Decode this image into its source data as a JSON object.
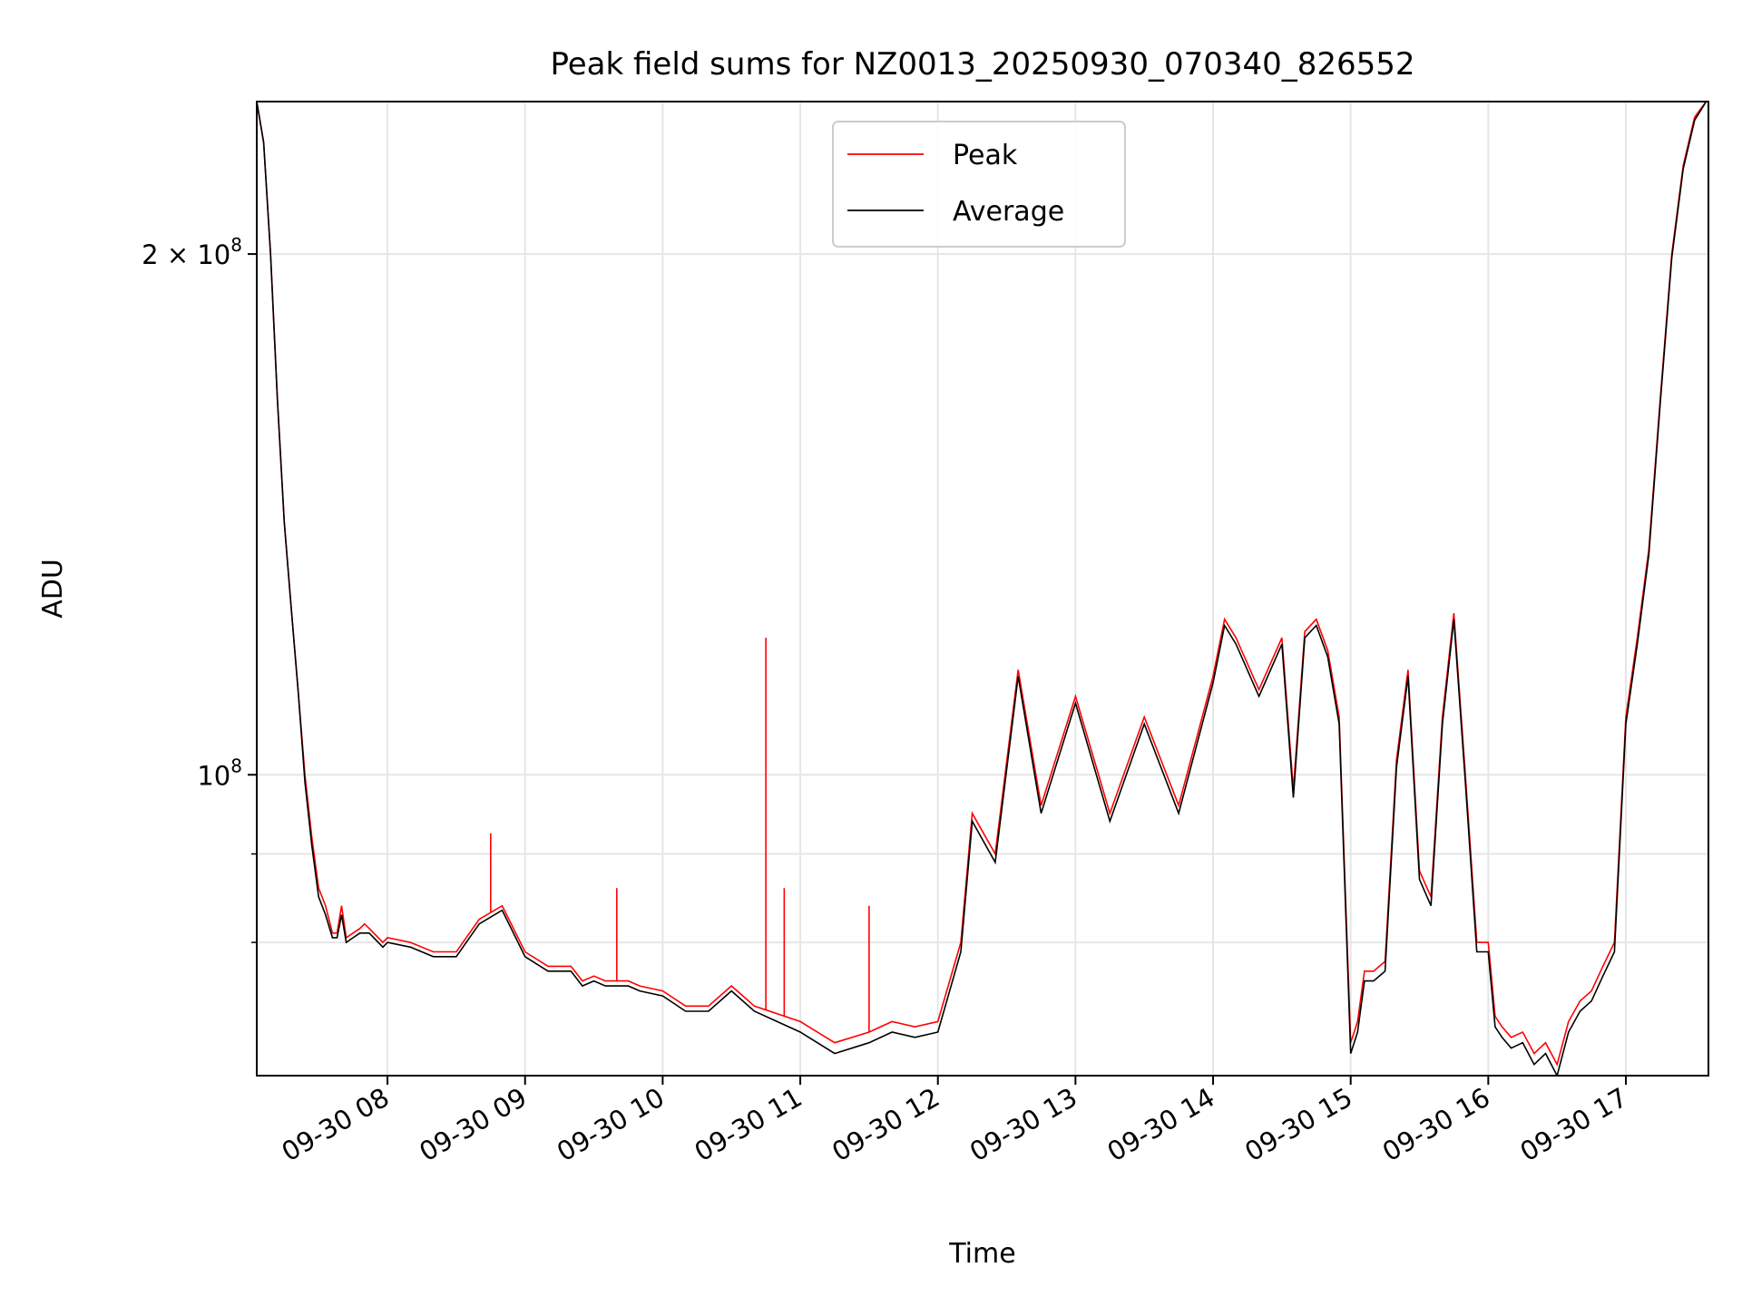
{
  "chart_data": {
    "type": "line",
    "title": "Peak field sums for NZ0013_20250930_070340_826552",
    "xlabel": "Time",
    "ylabel": "ADU",
    "y_scale": "log",
    "grid": true,
    "legend_placement": "upper-center",
    "x_range": [
      "09-30 07:03",
      "09-30 17:36"
    ],
    "ylim": [
      67000000,
      245000000
    ],
    "x_ticks": [
      "09-30 08",
      "09-30 09",
      "09-30 10",
      "09-30 11",
      "09-30 12",
      "09-30 13",
      "09-30 14",
      "09-30 15",
      "09-30 16",
      "09-30 17"
    ],
    "y_ticks": [
      {
        "value": 200000000,
        "base": "2 × 10",
        "exp": "8"
      },
      {
        "value": 100000000,
        "base": "10",
        "exp": "8"
      }
    ],
    "y_minor_ticks": [
      90000000,
      80000000
    ],
    "series": [
      {
        "name": "Peak",
        "color": "#ff0000",
        "x": [
          "07:03",
          "07:06",
          "07:09",
          "07:12",
          "07:15",
          "07:18",
          "07:21",
          "07:24",
          "07:27",
          "07:30",
          "07:33",
          "07:36",
          "07:38",
          "07:40",
          "07:42",
          "07:45",
          "07:48",
          "07:50",
          "07:52",
          "07:58",
          "08:00",
          "08:10",
          "08:20",
          "08:30",
          "08:40",
          "08:50",
          "09:00",
          "09:10",
          "09:20",
          "09:25",
          "09:30",
          "09:35",
          "09:40",
          "09:45",
          "09:50",
          "10:00",
          "10:10",
          "10:20",
          "10:30",
          "10:40",
          "11:00",
          "11:15",
          "11:30",
          "11:40",
          "11:50",
          "12:00",
          "12:10",
          "12:15",
          "12:25",
          "12:35",
          "12:45",
          "13:00",
          "13:15",
          "13:30",
          "13:45",
          "14:00",
          "14:05",
          "14:10",
          "14:20",
          "14:30",
          "14:35",
          "14:40",
          "14:45",
          "14:50",
          "14:55",
          "15:00",
          "15:03",
          "15:06",
          "15:10",
          "15:15",
          "15:20",
          "15:25",
          "15:30",
          "15:35",
          "15:40",
          "15:45",
          "15:50",
          "15:55",
          "16:00",
          "16:03",
          "16:06",
          "16:10",
          "16:15",
          "16:20",
          "16:25",
          "16:30",
          "16:35",
          "16:40",
          "16:45",
          "16:50",
          "16:55",
          "17:00",
          "17:05",
          "17:10",
          "17:15",
          "17:20",
          "17:25",
          "17:30",
          "17:35"
        ],
        "values": [
          245000000,
          232000000,
          200000000,
          165000000,
          140000000,
          125000000,
          112000000,
          100000000,
          92000000,
          86000000,
          84000000,
          81000000,
          81000000,
          84000000,
          80500000,
          81000000,
          81500000,
          82000000,
          81500000,
          80000000,
          80500000,
          80000000,
          79000000,
          79000000,
          82500000,
          84000000,
          79000000,
          77500000,
          77500000,
          76000000,
          76500000,
          76000000,
          76000000,
          76000000,
          75500000,
          75000000,
          73500000,
          73500000,
          75500000,
          73500000,
          72000000,
          70000000,
          71000000,
          72000000,
          71500000,
          72000000,
          80000000,
          95000000,
          90000000,
          115000000,
          96000000,
          111000000,
          95000000,
          108000000,
          96000000,
          114000000,
          123000000,
          120000000,
          112000000,
          120000000,
          98000000,
          121000000,
          123000000,
          118000000,
          108000000,
          70000000,
          72000000,
          77000000,
          77000000,
          78000000,
          102000000,
          115000000,
          88000000,
          85000000,
          108000000,
          124000000,
          100000000,
          80000000,
          80000000,
          72500000,
          71500000,
          70500000,
          71000000,
          69000000,
          70000000,
          68000000,
          72000000,
          74000000,
          75000000,
          77500000,
          80000000,
          108000000,
          120000000,
          135000000,
          165000000,
          200000000,
          225000000,
          240000000,
          245000000
        ],
        "spikes": [
          {
            "x": "08:45",
            "value": 92500000
          },
          {
            "x": "09:40",
            "value": 86000000
          },
          {
            "x": "10:45",
            "value": 120000000
          },
          {
            "x": "10:53",
            "value": 86000000
          },
          {
            "x": "11:30",
            "value": 84000000
          }
        ]
      },
      {
        "name": "Average",
        "color": "#000000",
        "x": [
          "07:03",
          "07:06",
          "07:09",
          "07:12",
          "07:15",
          "07:18",
          "07:21",
          "07:24",
          "07:27",
          "07:30",
          "07:33",
          "07:36",
          "07:38",
          "07:40",
          "07:42",
          "07:45",
          "07:48",
          "07:50",
          "07:52",
          "07:58",
          "08:00",
          "08:10",
          "08:20",
          "08:30",
          "08:40",
          "08:50",
          "09:00",
          "09:10",
          "09:20",
          "09:25",
          "09:30",
          "09:35",
          "09:40",
          "09:45",
          "09:50",
          "10:00",
          "10:10",
          "10:20",
          "10:30",
          "10:40",
          "11:00",
          "11:15",
          "11:30",
          "11:40",
          "11:50",
          "12:00",
          "12:10",
          "12:15",
          "12:25",
          "12:35",
          "12:45",
          "13:00",
          "13:15",
          "13:30",
          "13:45",
          "14:00",
          "14:05",
          "14:10",
          "14:20",
          "14:30",
          "14:35",
          "14:40",
          "14:45",
          "14:50",
          "14:55",
          "15:00",
          "15:03",
          "15:06",
          "15:10",
          "15:15",
          "15:20",
          "15:25",
          "15:30",
          "15:35",
          "15:40",
          "15:45",
          "15:50",
          "15:55",
          "16:00",
          "16:03",
          "16:06",
          "16:10",
          "16:15",
          "16:20",
          "16:25",
          "16:30",
          "16:35",
          "16:40",
          "16:45",
          "16:50",
          "16:55",
          "17:00",
          "17:05",
          "17:10",
          "17:15",
          "17:20",
          "17:25",
          "17:30",
          "17:35"
        ],
        "values": [
          245000000,
          232000000,
          200000000,
          165000000,
          140000000,
          125000000,
          112000000,
          99000000,
          91000000,
          85000000,
          83000000,
          80500000,
          80500000,
          83000000,
          80000000,
          80500000,
          81000000,
          81000000,
          81000000,
          79500000,
          80000000,
          79500000,
          78500000,
          78500000,
          82000000,
          83500000,
          78500000,
          77000000,
          77000000,
          75500000,
          76000000,
          75500000,
          75500000,
          75500000,
          75000000,
          74500000,
          73000000,
          73000000,
          75000000,
          73000000,
          71000000,
          69000000,
          70000000,
          71000000,
          70500000,
          71000000,
          79000000,
          94000000,
          89000000,
          114000000,
          95000000,
          110000000,
          94000000,
          107000000,
          95000000,
          113000000,
          122000000,
          119000000,
          111000000,
          119000000,
          97000000,
          120000000,
          122000000,
          117000000,
          107000000,
          69000000,
          71000000,
          76000000,
          76000000,
          77000000,
          101000000,
          114000000,
          87000000,
          84000000,
          107000000,
          123000000,
          99000000,
          79000000,
          79000000,
          71500000,
          70500000,
          69500000,
          70000000,
          68000000,
          69000000,
          67000000,
          71000000,
          73000000,
          74000000,
          76500000,
          79000000,
          107000000,
          119000000,
          134000000,
          164000000,
          199000000,
          224000000,
          239000000,
          245000000
        ]
      }
    ]
  }
}
